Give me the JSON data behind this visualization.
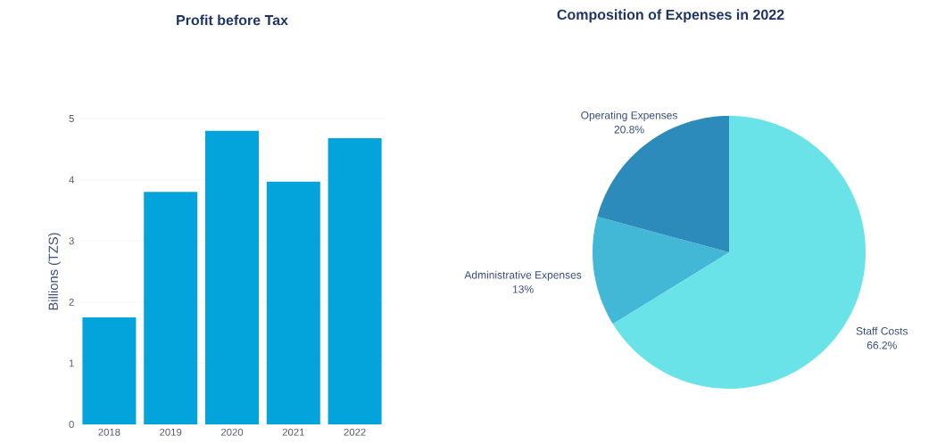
{
  "chart_data": [
    {
      "type": "bar",
      "title": "Profit before Tax",
      "ylabel": "Billions (TZS)",
      "categories": [
        "2018",
        "2019",
        "2020",
        "2021",
        "2022"
      ],
      "series": [
        {
          "color": "#03a3dc",
          "values": [
            1.75,
            3.8,
            4.8,
            3.97,
            4.68
          ]
        }
      ],
      "ylim": [
        0,
        5
      ],
      "yticks": [
        0,
        1,
        2,
        3,
        4,
        5
      ],
      "grid": "y"
    },
    {
      "type": "pie",
      "title": "Composition of Expenses in 2022",
      "categories": [
        "Staff Costs",
        "Administrative Expenses",
        "Operating Expenses"
      ],
      "values": [
        66.2,
        13,
        20.8
      ],
      "value_labels": [
        "66.2%",
        "13%",
        "20.8%"
      ],
      "colors": [
        "#6ae3e8",
        "#42b8d6",
        "#2d8bbb"
      ]
    }
  ]
}
